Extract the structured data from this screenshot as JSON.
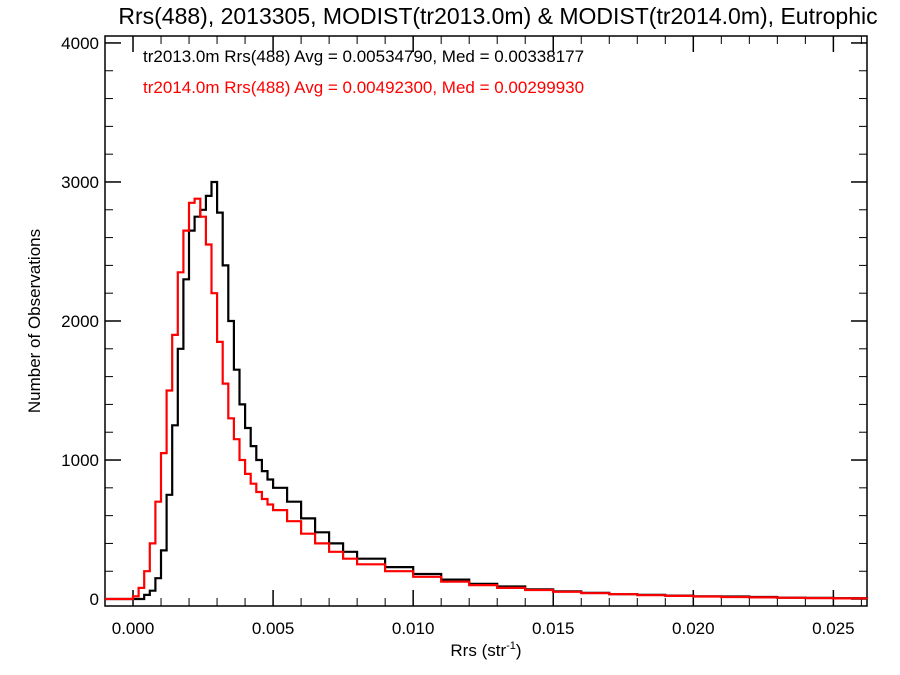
{
  "chart_data": {
    "type": "line",
    "title": "Rrs(488), 2013305, MODIST(tr2013.0m) & MODIST(tr2014.0m), Eutrophic",
    "xlabel_main": "Rrs (str",
    "xlabel_sup": "-1",
    "xlabel_close": ")",
    "ylabel": "Number of Observations",
    "xlim": [
      -0.001,
      0.0262
    ],
    "ylim": [
      -50,
      4050
    ],
    "x_ticks": [
      "0.000",
      "0.005",
      "0.010",
      "0.015",
      "0.020",
      "0.025"
    ],
    "x_tick_values": [
      0.0,
      0.005,
      0.01,
      0.015,
      0.02,
      0.025
    ],
    "y_ticks": [
      "0",
      "1000",
      "2000",
      "3000",
      "4000"
    ],
    "y_tick_values": [
      0,
      1000,
      2000,
      3000,
      4000
    ],
    "grid": false,
    "legend_placement": "top-left",
    "annotations": [
      {
        "text": "tr2013.0m Rrs(488) Avg = 0.00534790, Med = 0.00338177",
        "color": "#000000"
      },
      {
        "text": "tr2014.0m Rrs(488) Avg = 0.00492300, Med = 0.00299930",
        "color": "#ff0000"
      }
    ],
    "series": [
      {
        "color": "#000000",
        "x": [
          -0.001,
          0.0002,
          0.0004,
          0.0006,
          0.0008,
          0.001,
          0.0012,
          0.0014,
          0.0016,
          0.0018,
          0.002,
          0.0022,
          0.0024,
          0.0026,
          0.0028,
          0.003,
          0.0032,
          0.0034,
          0.0036,
          0.0038,
          0.004,
          0.0042,
          0.0044,
          0.0046,
          0.0048,
          0.005,
          0.0055,
          0.006,
          0.0065,
          0.007,
          0.0075,
          0.008,
          0.009,
          0.01,
          0.011,
          0.012,
          0.013,
          0.014,
          0.015,
          0.016,
          0.017,
          0.018,
          0.019,
          0.02,
          0.021,
          0.022,
          0.023,
          0.024,
          0.025,
          0.0262
        ],
        "y": [
          0,
          0,
          30,
          60,
          150,
          350,
          750,
          1250,
          1800,
          2300,
          2650,
          2750,
          2800,
          2900,
          3000,
          2780,
          2400,
          2000,
          1650,
          1400,
          1230,
          1100,
          1000,
          920,
          860,
          800,
          700,
          580,
          480,
          400,
          340,
          290,
          230,
          180,
          140,
          110,
          90,
          70,
          55,
          45,
          35,
          30,
          25,
          20,
          18,
          15,
          10,
          8,
          6,
          5
        ]
      },
      {
        "color": "#ff0000",
        "x": [
          -0.001,
          0.0,
          0.0002,
          0.0004,
          0.0006,
          0.0008,
          0.001,
          0.0012,
          0.0014,
          0.0016,
          0.0018,
          0.002,
          0.0022,
          0.0024,
          0.0026,
          0.0028,
          0.003,
          0.0032,
          0.0034,
          0.0036,
          0.0038,
          0.004,
          0.0042,
          0.0044,
          0.0046,
          0.0048,
          0.005,
          0.0055,
          0.006,
          0.0065,
          0.007,
          0.0075,
          0.008,
          0.009,
          0.01,
          0.011,
          0.012,
          0.013,
          0.014,
          0.015,
          0.016,
          0.017,
          0.018,
          0.019,
          0.02,
          0.021,
          0.022,
          0.023,
          0.024,
          0.025,
          0.0262
        ],
        "y": [
          0,
          20,
          80,
          200,
          400,
          700,
          1050,
          1500,
          1900,
          2350,
          2650,
          2850,
          2880,
          2750,
          2550,
          2200,
          1850,
          1550,
          1300,
          1150,
          1000,
          900,
          830,
          770,
          720,
          680,
          640,
          560,
          470,
          400,
          340,
          290,
          250,
          200,
          160,
          125,
          100,
          80,
          65,
          52,
          42,
          35,
          28,
          23,
          18,
          15,
          12,
          9,
          7,
          5,
          4
        ]
      }
    ]
  }
}
